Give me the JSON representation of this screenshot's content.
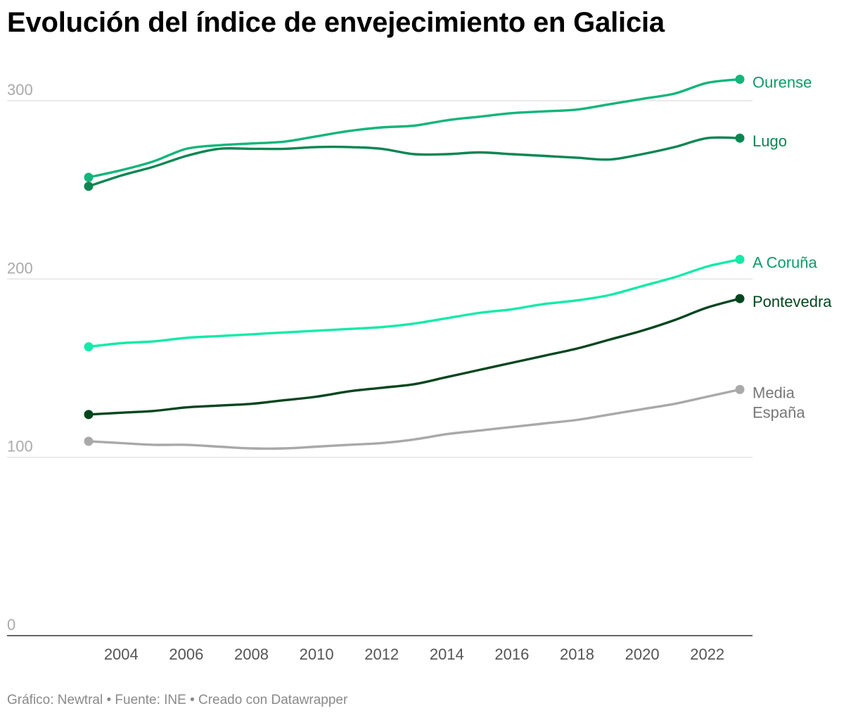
{
  "title": "Evolución del índice de envejecimiento en Galicia",
  "footer": "Gráfico: Newtral • Fuente: INE • Creado con Datawrapper",
  "chart_data": {
    "type": "line",
    "title": "Evolución del índice de envejecimiento en Galicia",
    "xlabel": "",
    "ylabel": "",
    "xlim": [
      2000.5,
      2024.2
    ],
    "ylim": [
      0,
      300
    ],
    "y_ticks": [
      0,
      100,
      200,
      300
    ],
    "x_ticks": [
      2004,
      2006,
      2008,
      2010,
      2012,
      2014,
      2016,
      2018,
      2020,
      2022
    ],
    "grid": true,
    "legend": "direct labels at line ends",
    "series": [
      {
        "name": "Ourense",
        "color": "#12b57b",
        "label_color": "#0e9a68",
        "x": [
          2003,
          2004,
          2005,
          2006,
          2007,
          2008,
          2009,
          2010,
          2011,
          2012,
          2013,
          2014,
          2015,
          2016,
          2017,
          2018,
          2019,
          2020,
          2021,
          2022,
          2023
        ],
        "y": [
          257,
          261,
          266,
          273,
          275,
          276,
          277,
          280,
          283,
          285,
          286,
          289,
          291,
          293,
          294,
          295,
          298,
          301,
          304,
          310,
          312
        ]
      },
      {
        "name": "Lugo",
        "color": "#0a8653",
        "label_color": "#0a8653",
        "x": [
          2003,
          2004,
          2005,
          2006,
          2007,
          2008,
          2009,
          2010,
          2011,
          2012,
          2013,
          2014,
          2015,
          2016,
          2017,
          2018,
          2019,
          2020,
          2021,
          2022,
          2023
        ],
        "y": [
          252,
          258,
          263,
          269,
          273,
          273,
          273,
          274,
          274,
          273,
          270,
          270,
          271,
          270,
          269,
          268,
          267,
          270,
          274,
          279,
          279
        ]
      },
      {
        "name": "A Coruña",
        "color": "#13eaa9",
        "label_color": "#0e9a68",
        "x": [
          2003,
          2004,
          2005,
          2006,
          2007,
          2008,
          2009,
          2010,
          2011,
          2012,
          2013,
          2014,
          2015,
          2016,
          2017,
          2018,
          2019,
          2020,
          2021,
          2022,
          2023
        ],
        "y": [
          162,
          164,
          165,
          167,
          168,
          169,
          170,
          171,
          172,
          173,
          175,
          178,
          181,
          183,
          186,
          188,
          191,
          196,
          201,
          207,
          211
        ]
      },
      {
        "name": "Pontevedra",
        "color": "#04461f",
        "label_color": "#04461f",
        "x": [
          2003,
          2004,
          2005,
          2006,
          2007,
          2008,
          2009,
          2010,
          2011,
          2012,
          2013,
          2014,
          2015,
          2016,
          2017,
          2018,
          2019,
          2020,
          2021,
          2022,
          2023
        ],
        "y": [
          124,
          125,
          126,
          128,
          129,
          130,
          132,
          134,
          137,
          139,
          141,
          145,
          149,
          153,
          157,
          161,
          166,
          171,
          177,
          184,
          189
        ]
      },
      {
        "name": "Media España",
        "label_lines": [
          "Media",
          "España"
        ],
        "color": "#a9a9a9",
        "label_color": "#777777",
        "x": [
          2003,
          2004,
          2005,
          2006,
          2007,
          2008,
          2009,
          2010,
          2011,
          2012,
          2013,
          2014,
          2015,
          2016,
          2017,
          2018,
          2019,
          2020,
          2021,
          2022,
          2023
        ],
        "y": [
          109,
          108,
          107,
          107,
          106,
          105,
          105,
          106,
          107,
          108,
          110,
          113,
          115,
          117,
          119,
          121,
          124,
          127,
          130,
          134,
          138
        ]
      }
    ]
  }
}
